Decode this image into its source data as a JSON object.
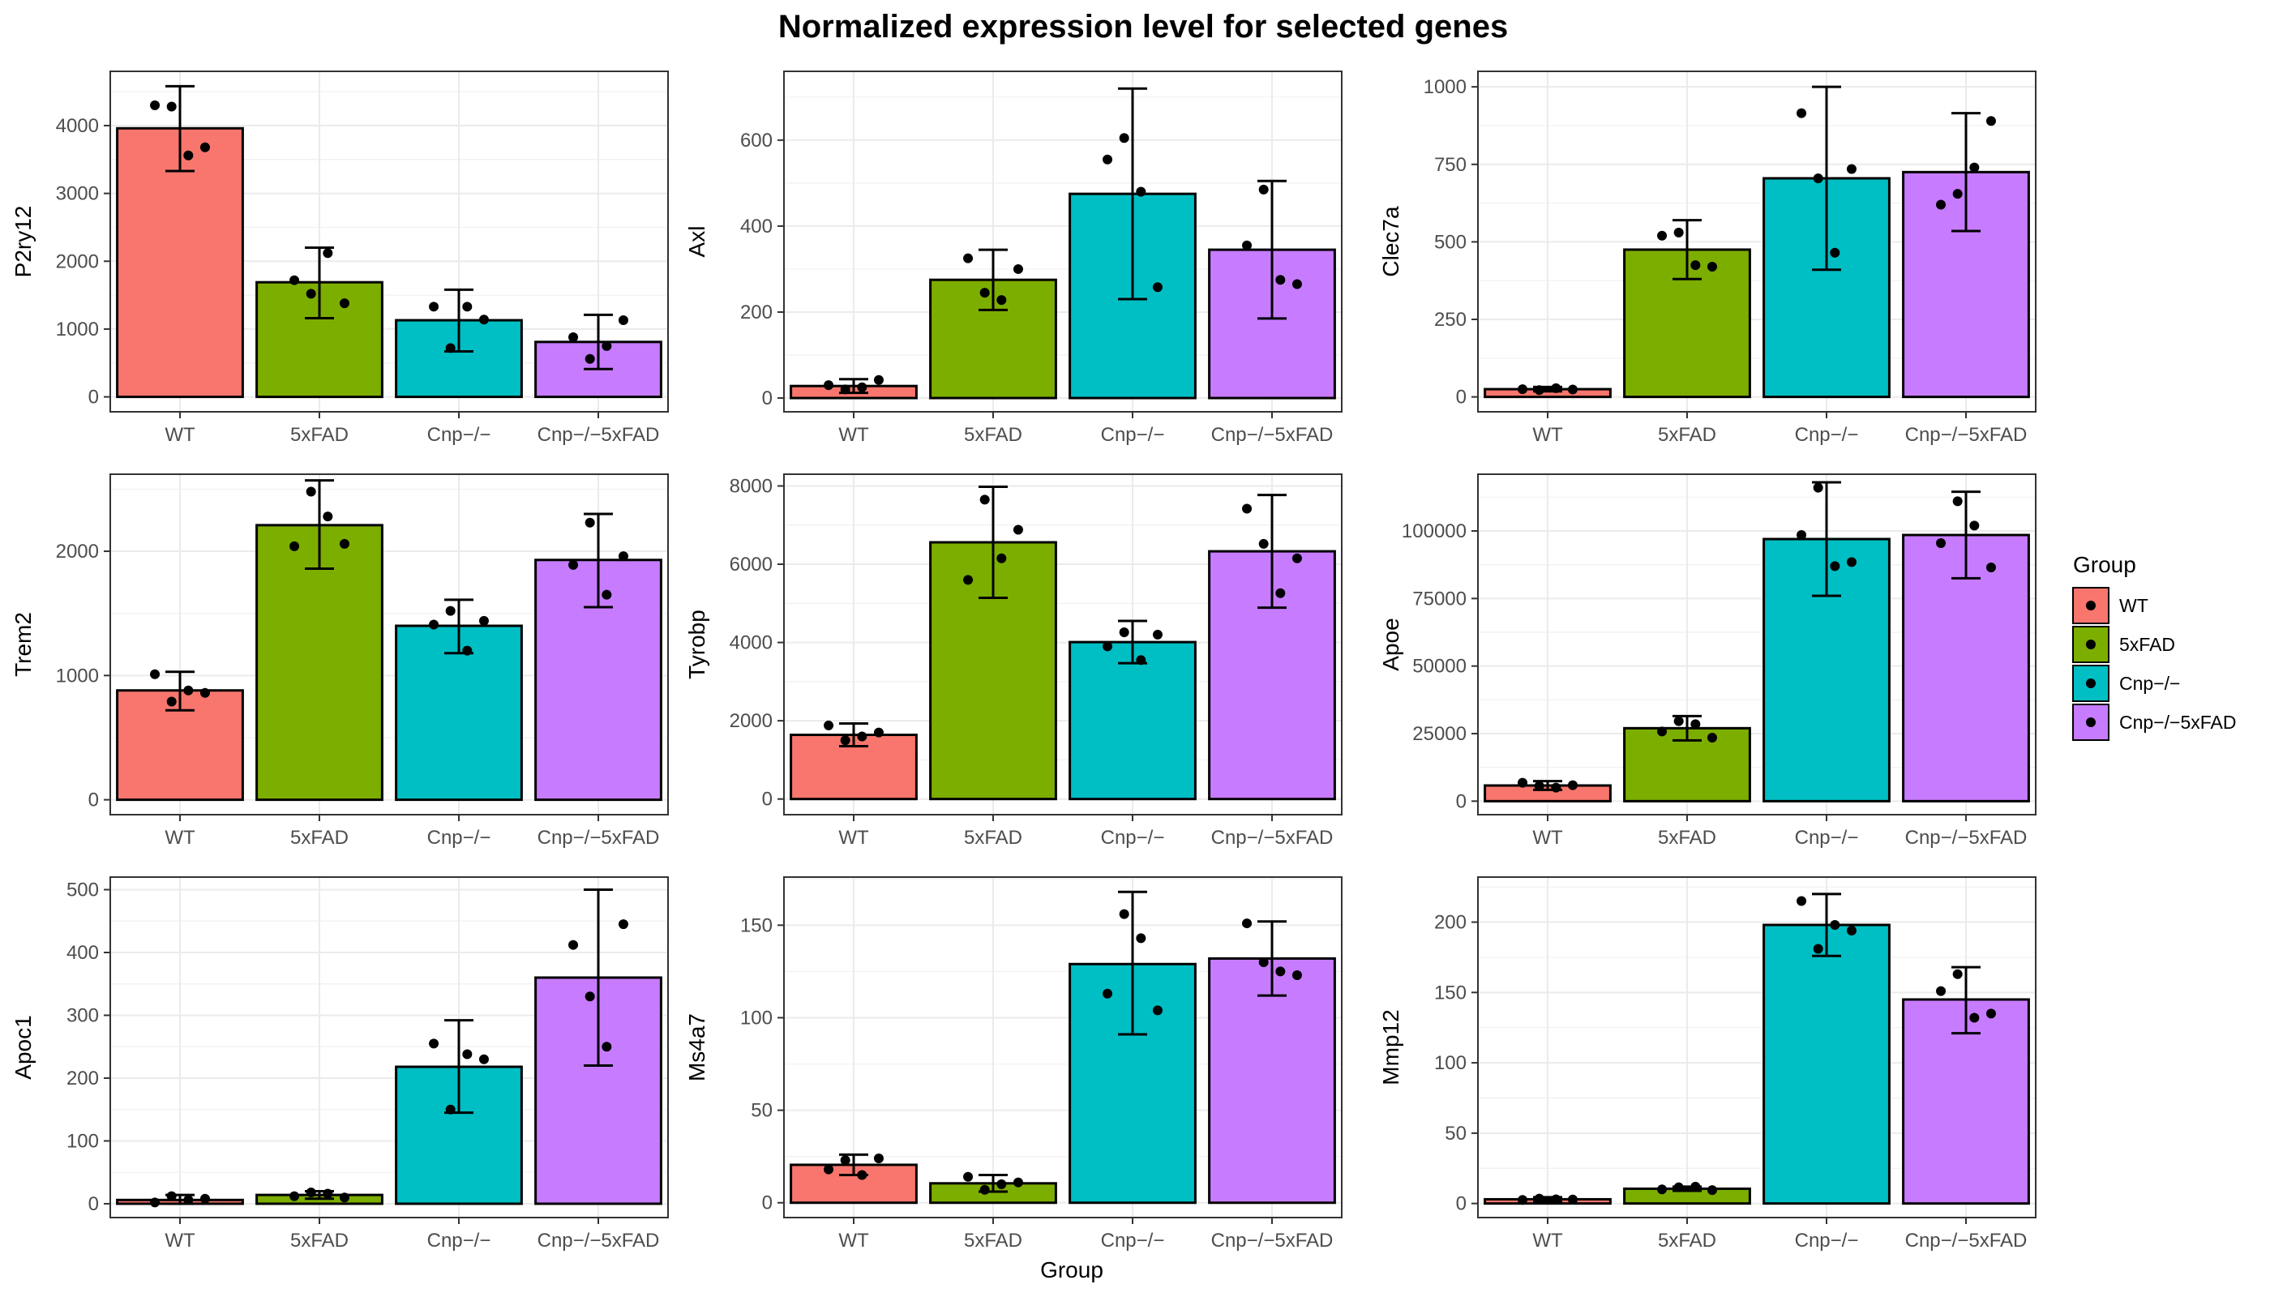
{
  "title": "Normalized expression level for selected genes",
  "xlabel": "Group",
  "legend": {
    "title": "Group",
    "placement": "right",
    "entries": [
      {
        "label": "WT",
        "color": "#F8766D"
      },
      {
        "label": "5xFAD",
        "color": "#7CAE00"
      },
      {
        "label": "Cnp−/−",
        "color": "#00BFC4"
      },
      {
        "label": "Cnp−/−5xFAD",
        "color": "#C77CFF"
      }
    ]
  },
  "chart_data": [
    {
      "type": "bar",
      "ylabel": "P2ry12",
      "categories": [
        "WT",
        "5xFAD",
        "Cnp−/−",
        "Cnp−/−5xFAD"
      ],
      "ylim": [
        -220,
        4800
      ],
      "yticks": [
        0,
        1000,
        2000,
        3000,
        4000
      ],
      "tick_labels": [
        "0",
        "1000",
        "2000",
        "3000",
        "4000"
      ],
      "values": [
        3960,
        1690,
        1130,
        810
      ],
      "error_low": [
        3330,
        1160,
        670,
        410
      ],
      "error_high": [
        4580,
        2200,
        1580,
        1210
      ],
      "points": [
        [
          4300,
          4280,
          3560,
          3680
        ],
        [
          1720,
          1520,
          2120,
          1380
        ],
        [
          1330,
          720,
          1330,
          1140
        ],
        [
          880,
          560,
          750,
          1130
        ]
      ]
    },
    {
      "type": "bar",
      "ylabel": "Axl",
      "categories": [
        "WT",
        "5xFAD",
        "Cnp−/−",
        "Cnp−/−5xFAD"
      ],
      "ylim": [
        -32,
        760
      ],
      "yticks": [
        0,
        200,
        400,
        600
      ],
      "tick_labels": [
        "0",
        "200",
        "400",
        "600"
      ],
      "values": [
        28,
        275,
        475,
        345
      ],
      "error_low": [
        12,
        205,
        230,
        185
      ],
      "error_high": [
        44,
        345,
        720,
        505
      ],
      "points": [
        [
          30,
          20,
          25,
          42
        ],
        [
          325,
          245,
          228,
          300
        ],
        [
          555,
          605,
          480,
          258
        ],
        [
          355,
          485,
          275,
          265
        ]
      ]
    },
    {
      "type": "bar",
      "ylabel": "Clec7a",
      "categories": [
        "WT",
        "5xFAD",
        "Cnp−/−",
        "Cnp−/−5xFAD"
      ],
      "ylim": [
        -48,
        1050
      ],
      "yticks": [
        0,
        250,
        500,
        750,
        1000
      ],
      "tick_labels": [
        "0",
        "250",
        "500",
        "750",
        "1000"
      ],
      "values": [
        25,
        475,
        705,
        725
      ],
      "error_low": [
        18,
        380,
        410,
        535
      ],
      "error_high": [
        32,
        570,
        1000,
        915
      ],
      "points": [
        [
          25,
          22,
          28,
          24
        ],
        [
          520,
          530,
          425,
          420
        ],
        [
          915,
          705,
          465,
          735
        ],
        [
          620,
          655,
          740,
          890
        ]
      ]
    },
    {
      "type": "bar",
      "ylabel": "Trem2",
      "categories": [
        "WT",
        "5xFAD",
        "Cnp−/−",
        "Cnp−/−5xFAD"
      ],
      "ylim": [
        -120,
        2620
      ],
      "yticks": [
        0,
        1000,
        2000
      ],
      "tick_labels": [
        "0",
        "1000",
        "2000"
      ],
      "values": [
        880,
        2210,
        1400,
        1930
      ],
      "error_low": [
        720,
        1860,
        1180,
        1550
      ],
      "error_high": [
        1030,
        2570,
        1610,
        2300
      ],
      "points": [
        [
          1010,
          790,
          880,
          860
        ],
        [
          2040,
          2480,
          2280,
          2060
        ],
        [
          1410,
          1520,
          1200,
          1440
        ],
        [
          1890,
          2230,
          1650,
          1960
        ]
      ]
    },
    {
      "type": "bar",
      "ylabel": "Tyrobp",
      "categories": [
        "WT",
        "5xFAD",
        "Cnp−/−",
        "Cnp−/−5xFAD"
      ],
      "ylim": [
        -400,
        8300
      ],
      "yticks": [
        0,
        2000,
        4000,
        6000,
        8000
      ],
      "tick_labels": [
        "0",
        "2000",
        "4000",
        "6000",
        "8000"
      ],
      "values": [
        1640,
        6560,
        4010,
        6330
      ],
      "error_low": [
        1350,
        5140,
        3470,
        4890
      ],
      "error_high": [
        1930,
        7980,
        4550,
        7770
      ],
      "points": [
        [
          1880,
          1500,
          1600,
          1700
        ],
        [
          5600,
          7650,
          6150,
          6880
        ],
        [
          3900,
          4260,
          3550,
          4200
        ],
        [
          7420,
          6520,
          5260,
          6150
        ]
      ]
    },
    {
      "type": "bar",
      "ylabel": "Apoe",
      "categories": [
        "WT",
        "5xFAD",
        "Cnp−/−",
        "Cnp−/−5xFAD"
      ],
      "ylim": [
        -5000,
        121000
      ],
      "yticks": [
        0,
        25000,
        50000,
        75000,
        100000
      ],
      "tick_labels": [
        "0",
        "25000",
        "50000",
        "75000",
        "100000"
      ],
      "values": [
        5800,
        27000,
        97000,
        98500
      ],
      "error_low": [
        4200,
        22500,
        76000,
        82500
      ],
      "error_high": [
        7400,
        31500,
        118000,
        114500
      ],
      "points": [
        [
          6800,
          5600,
          5000,
          5900
        ],
        [
          25800,
          29600,
          28500,
          23500
        ],
        [
          98500,
          116000,
          87000,
          88500
        ],
        [
          95500,
          111000,
          102000,
          86500
        ]
      ]
    },
    {
      "type": "bar",
      "ylabel": "Apoc1",
      "categories": [
        "WT",
        "5xFAD",
        "Cnp−/−",
        "Cnp−/−5xFAD"
      ],
      "ylim": [
        -22,
        520
      ],
      "yticks": [
        0,
        100,
        200,
        300,
        400,
        500
      ],
      "tick_labels": [
        "0",
        "100",
        "200",
        "300",
        "400",
        "500"
      ],
      "values": [
        6,
        14,
        218,
        360
      ],
      "error_low": [
        0,
        8,
        145,
        220
      ],
      "error_high": [
        14,
        20,
        292,
        500
      ],
      "points": [
        [
          2,
          12,
          6,
          8
        ],
        [
          12,
          18,
          16,
          10
        ],
        [
          255,
          150,
          238,
          230
        ],
        [
          412,
          330,
          250,
          445
        ]
      ]
    },
    {
      "type": "bar",
      "ylabel": "Ms4a7",
      "categories": [
        "WT",
        "5xFAD",
        "Cnp−/−",
        "Cnp−/−5xFAD"
      ],
      "ylim": [
        -8,
        176
      ],
      "yticks": [
        0,
        50,
        100,
        150
      ],
      "tick_labels": [
        "0",
        "50",
        "100",
        "150"
      ],
      "values": [
        20.5,
        10.5,
        129,
        132
      ],
      "error_low": [
        15,
        6,
        91,
        112
      ],
      "error_high": [
        26,
        15,
        168,
        152
      ],
      "points": [
        [
          18,
          23,
          15,
          24
        ],
        [
          14,
          7,
          10,
          11
        ],
        [
          113,
          156,
          143,
          104
        ],
        [
          151,
          130,
          125,
          123
        ]
      ]
    },
    {
      "type": "bar",
      "ylabel": "Mmp12",
      "categories": [
        "WT",
        "5xFAD",
        "Cnp−/−",
        "Cnp−/−5xFAD"
      ],
      "ylim": [
        -10,
        232
      ],
      "yticks": [
        0,
        50,
        100,
        150,
        200
      ],
      "tick_labels": [
        "0",
        "50",
        "100",
        "150",
        "200"
      ],
      "values": [
        3,
        10.5,
        198,
        145
      ],
      "error_low": [
        1.5,
        9,
        176,
        121
      ],
      "error_high": [
        4.5,
        12,
        220,
        168
      ],
      "points": [
        [
          2.5,
          3.5,
          3,
          2.8
        ],
        [
          10,
          11.5,
          12,
          9.5
        ],
        [
          215,
          181,
          198,
          194
        ],
        [
          151,
          163,
          132,
          135
        ]
      ]
    }
  ]
}
